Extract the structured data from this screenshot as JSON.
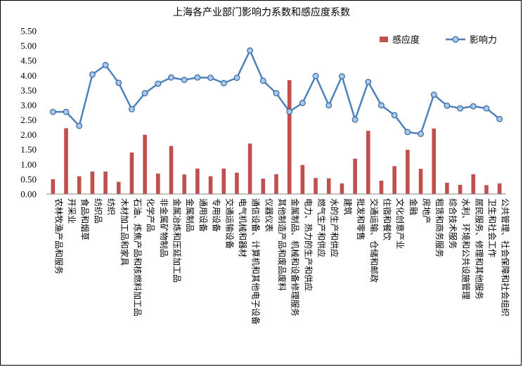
{
  "chart_data": {
    "type": "bar",
    "title": "上海各产业部门影响力系数和感应度系数",
    "xlabel": "",
    "ylabel": "",
    "ylim": [
      0,
      5.5
    ],
    "yticks": [
      "0.00",
      "0.50",
      "1.00",
      "1.50",
      "2.00",
      "2.50",
      "3.00",
      "3.50",
      "4.00",
      "4.50",
      "5.00",
      "5.50"
    ],
    "grid": false,
    "legend_position": "top-right",
    "categories": [
      "农林牧渔产品和服务",
      "开采业",
      "食品和烟草",
      "纺织品",
      "纺织",
      "木材加工品和家具",
      "石油、炼焦产品和核燃料加工品",
      "化学产品",
      "非金属矿物制品",
      "金属冶炼和压延加工品",
      "金属制品",
      "通用设备",
      "专用设备",
      "交通运输设备",
      "电气机械和器材",
      "通信设备、计算机和其他电子设备",
      "仪器仪表",
      "其他制造产品和废品废料",
      "金属制品、机械和设备修理服务",
      "电力、热力的生产和供应",
      "燃气生产和供应",
      "水的生产和供应",
      "建筑",
      "批发和零售",
      "交通运输、仓储和邮政",
      "住宿和餐饮",
      "文化创意产业",
      "金融",
      "房地产",
      "租赁和商务服务",
      "综合技术服务",
      "水利、环境和公共设施管理",
      "居民服务、修理和其他服务",
      "卫生和社会工作",
      "公共管理、社会保障和社会组织"
    ],
    "series": [
      {
        "name": "感应度",
        "type": "bar",
        "color": "#c0504d",
        "values": [
          0.5,
          2.22,
          0.6,
          0.76,
          0.76,
          0.41,
          1.4,
          2.0,
          0.69,
          1.62,
          0.66,
          0.86,
          0.6,
          0.86,
          0.72,
          1.7,
          0.52,
          0.67,
          3.84,
          0.98,
          0.54,
          0.53,
          0.36,
          1.19,
          2.13,
          0.45,
          0.94,
          1.49,
          0.85,
          2.21,
          0.38,
          0.31,
          0.67,
          0.3,
          0.36
        ]
      },
      {
        "name": "影响力",
        "type": "line",
        "color": "#4f81bd",
        "values": [
          2.77,
          2.77,
          2.3,
          4.03,
          4.35,
          3.75,
          2.86,
          3.4,
          3.72,
          3.93,
          3.85,
          3.93,
          3.92,
          3.74,
          3.92,
          4.84,
          3.82,
          3.4,
          2.78,
          3.07,
          3.98,
          2.99,
          3.97,
          2.51,
          3.78,
          2.99,
          2.66,
          2.09,
          2.03,
          3.35,
          2.98,
          2.89,
          2.96,
          2.89,
          2.53
        ]
      }
    ]
  }
}
